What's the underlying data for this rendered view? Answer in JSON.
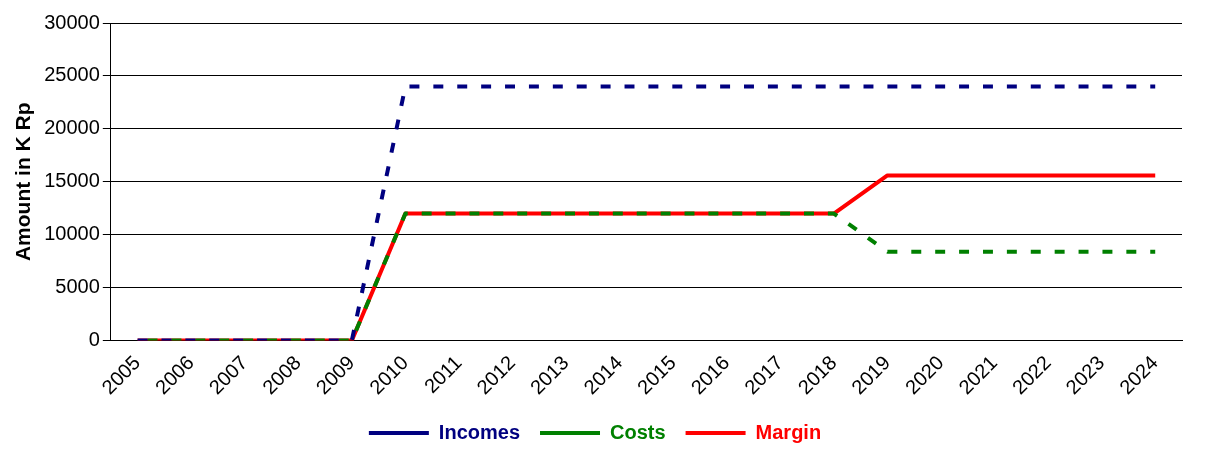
{
  "chart_data": {
    "type": "line",
    "ylabel": "Amount in K Rp",
    "categories": [
      "2005",
      "2006",
      "2007",
      "2008",
      "2009",
      "2010",
      "2011",
      "2012",
      "2013",
      "2014",
      "2015",
      "2016",
      "2017",
      "2018",
      "2019",
      "2020",
      "2021",
      "2022",
      "2023",
      "2024"
    ],
    "series": [
      {
        "name": "Incomes",
        "color": "#000080",
        "line_style": "dashed",
        "values": [
          0,
          0,
          0,
          0,
          0,
          24000,
          24000,
          24000,
          24000,
          24000,
          24000,
          24000,
          24000,
          24000,
          24000,
          24000,
          24000,
          24000,
          24000,
          24000
        ]
      },
      {
        "name": "Costs",
        "color": "#008000",
        "line_style": "dashed",
        "values": [
          0,
          0,
          0,
          0,
          0,
          12000,
          12000,
          12000,
          12000,
          12000,
          12000,
          12000,
          12000,
          12000,
          8400,
          8400,
          8400,
          8400,
          8400,
          8400
        ]
      },
      {
        "name": "Margin",
        "color": "#ff0000",
        "line_style": "solid",
        "values": [
          0,
          0,
          0,
          0,
          0,
          12000,
          12000,
          12000,
          12000,
          12000,
          12000,
          12000,
          12000,
          12000,
          15600,
          15600,
          15600,
          15600,
          15600,
          15600
        ]
      }
    ],
    "ylim": [
      0,
      30000
    ],
    "yticks": [
      0,
      5000,
      10000,
      15000,
      20000,
      25000,
      30000
    ],
    "grid": "y",
    "legend": "bottom",
    "marker": "none"
  }
}
